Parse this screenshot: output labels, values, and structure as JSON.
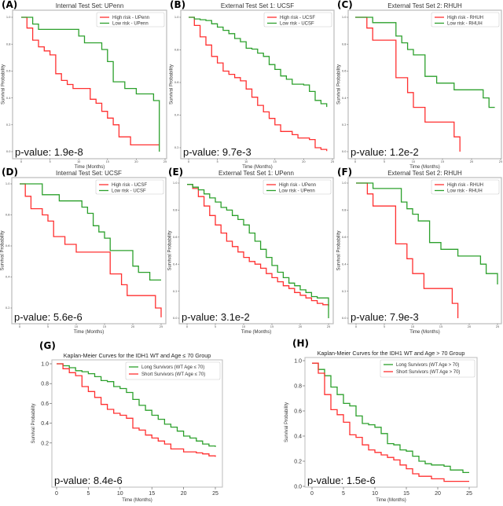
{
  "chart_data": [
    {
      "type": "line",
      "step": true,
      "label": "(A)",
      "title": "Internal Test Set: UPenn",
      "xlabel": "Time (Months)",
      "ylabel": "Survival Probability",
      "pvalue": "p-value: 1.9e-8",
      "xlim": [
        0,
        25
      ],
      "ylim": [
        0,
        1.0
      ],
      "xticks": [
        "0",
        "5",
        "10",
        "15",
        "20",
        "25"
      ],
      "yticks": [
        "0.0",
        "0.2",
        "0.4",
        "0.6",
        "0.8",
        "1.0"
      ],
      "legend": "top-right",
      "grid": false,
      "series": [
        {
          "name": "High risk - UPenn",
          "color": "#ff3030",
          "x": [
            0,
            1,
            2,
            3,
            4,
            5,
            6,
            7,
            8,
            9,
            12,
            13,
            14,
            15,
            16,
            17,
            19,
            24
          ],
          "y": [
            1.0,
            0.92,
            0.83,
            0.78,
            0.75,
            0.72,
            0.58,
            0.53,
            0.5,
            0.47,
            0.39,
            0.36,
            0.3,
            0.25,
            0.2,
            0.11,
            0.05,
            0.05
          ]
        },
        {
          "name": "Low risk - UPenn",
          "color": "#2ca02c",
          "x": [
            0,
            2,
            3,
            10,
            11,
            14,
            15,
            16,
            18,
            20,
            23,
            24
          ],
          "y": [
            1.0,
            0.95,
            0.91,
            0.86,
            0.81,
            0.76,
            0.67,
            0.52,
            0.47,
            0.43,
            0.38,
            0.0
          ]
        }
      ]
    },
    {
      "type": "line",
      "step": true,
      "label": "(B)",
      "title": "External Test Set 1: UCSF",
      "xlabel": "Time (Months)",
      "ylabel": "Survival Probability",
      "pvalue": "p-value: 9.7e-3",
      "xlim": [
        0,
        25
      ],
      "ylim": [
        0.2,
        1.0
      ],
      "xticks": [
        "0",
        "5",
        "10",
        "15",
        "20",
        "25"
      ],
      "yticks": [
        "0.2",
        "0.4",
        "0.6",
        "0.8",
        "1.0"
      ],
      "legend": "top-right",
      "grid": false,
      "series": [
        {
          "name": "High risk - UCSF",
          "color": "#ff3030",
          "x": [
            0,
            1,
            2,
            3,
            4,
            5,
            6,
            7,
            8,
            9,
            10,
            11,
            12,
            13,
            14,
            15,
            16,
            18,
            19,
            21,
            22,
            23,
            24
          ],
          "y": [
            1.0,
            0.95,
            0.88,
            0.83,
            0.76,
            0.72,
            0.67,
            0.65,
            0.63,
            0.61,
            0.56,
            0.51,
            0.46,
            0.42,
            0.38,
            0.34,
            0.3,
            0.28,
            0.26,
            0.25,
            0.2,
            0.19,
            0.18
          ]
        },
        {
          "name": "Low risk - UCSF",
          "color": "#2ca02c",
          "x": [
            0,
            1,
            2,
            3,
            4,
            5,
            6,
            7,
            8,
            9,
            10,
            11,
            12,
            13,
            14,
            15,
            16,
            17,
            18,
            20,
            21,
            22,
            23,
            24
          ],
          "y": [
            1.0,
            0.99,
            0.985,
            0.98,
            0.96,
            0.94,
            0.92,
            0.9,
            0.87,
            0.85,
            0.81,
            0.805,
            0.78,
            0.76,
            0.71,
            0.68,
            0.64,
            0.62,
            0.59,
            0.585,
            0.545,
            0.49,
            0.47,
            0.45
          ]
        }
      ]
    },
    {
      "type": "line",
      "step": true,
      "label": "(C)",
      "title": "External Test Set 2: RHUH",
      "xlabel": "Time (Months)",
      "ylabel": "Survival Probability",
      "pvalue": "p-value: 1.2e-2",
      "xlim": [
        0,
        25
      ],
      "ylim": [
        0,
        1.0
      ],
      "xticks": [
        "0",
        "5",
        "10",
        "15",
        "20",
        "25"
      ],
      "yticks": [
        "0.0",
        "0.2",
        "0.4",
        "0.6",
        "0.8",
        "1.0"
      ],
      "legend": "top-right",
      "grid": false,
      "series": [
        {
          "name": "High risk - RHUH",
          "color": "#ff3030",
          "x": [
            0,
            2,
            3,
            7,
            9,
            10,
            12,
            17,
            18
          ],
          "y": [
            1.0,
            0.92,
            0.83,
            0.55,
            0.44,
            0.33,
            0.22,
            0.11,
            0.0
          ]
        },
        {
          "name": "Low risk - RHUH",
          "color": "#2ca02c",
          "x": [
            0,
            3,
            7,
            8,
            9,
            10,
            12,
            14,
            17,
            22,
            23,
            24
          ],
          "y": [
            1.0,
            0.96,
            0.86,
            0.81,
            0.76,
            0.72,
            0.56,
            0.51,
            0.46,
            0.4,
            0.33,
            0.33
          ]
        }
      ]
    },
    {
      "type": "line",
      "step": true,
      "label": "(D)",
      "title": "Internal Test Set: UCSF",
      "xlabel": "Time (Months)",
      "ylabel": "Survival Probability",
      "pvalue": "p-value: 5.6e-6",
      "xlim": [
        0,
        25
      ],
      "ylim": [
        0.2,
        1.0
      ],
      "xticks": [
        "0",
        "5",
        "10",
        "15",
        "20",
        "25"
      ],
      "yticks": [
        "0.2",
        "0.4",
        "0.6",
        "0.8",
        "1.0"
      ],
      "legend": "top-right",
      "grid": false,
      "series": [
        {
          "name": "High risk - UCSF",
          "color": "#ff3030",
          "x": [
            0,
            1,
            2,
            4,
            5,
            6,
            8,
            10,
            16,
            18,
            19,
            24,
            25
          ],
          "y": [
            1.0,
            0.92,
            0.84,
            0.8,
            0.76,
            0.66,
            0.61,
            0.56,
            0.42,
            0.35,
            0.28,
            0.2,
            0.14
          ]
        },
        {
          "name": "Low risk - UCSF",
          "color": "#2ca02c",
          "x": [
            0,
            4,
            7,
            11,
            12,
            13,
            14,
            15,
            16,
            20,
            21,
            23,
            25
          ],
          "y": [
            1.0,
            0.93,
            0.89,
            0.85,
            0.81,
            0.73,
            0.69,
            0.65,
            0.57,
            0.47,
            0.43,
            0.38,
            0.38
          ]
        }
      ]
    },
    {
      "type": "line",
      "step": true,
      "label": "(E)",
      "title": "External Test Set 1: UPenn",
      "xlabel": "Time (Months)",
      "ylabel": "Survival Probability",
      "pvalue": "p-value: 3.1e-2",
      "xlim": [
        0,
        25
      ],
      "ylim": [
        0,
        1.0
      ],
      "xticks": [
        "0",
        "5",
        "10",
        "15",
        "20",
        "25"
      ],
      "yticks": [
        "0.0",
        "0.2",
        "0.4",
        "0.6",
        "0.8",
        "1.0"
      ],
      "legend": "top-right",
      "grid": false,
      "series": [
        {
          "name": "High risk - UPenn",
          "color": "#ff3030",
          "x": [
            0,
            1,
            2,
            3,
            4,
            5,
            6,
            7,
            8,
            9,
            10,
            11,
            12,
            13,
            14,
            15,
            16,
            17,
            18,
            19,
            20,
            21,
            22,
            23,
            24,
            25
          ],
          "y": [
            0.99,
            0.96,
            0.9,
            0.83,
            0.76,
            0.69,
            0.63,
            0.57,
            0.53,
            0.49,
            0.45,
            0.42,
            0.4,
            0.37,
            0.33,
            0.3,
            0.27,
            0.24,
            0.22,
            0.19,
            0.17,
            0.15,
            0.13,
            0.11,
            0.1,
            0.09
          ]
        },
        {
          "name": "Low risk - UPenn",
          "color": "#2ca02c",
          "x": [
            0,
            1,
            2,
            3,
            4,
            5,
            6,
            7,
            8,
            9,
            10,
            11,
            12,
            13,
            14,
            15,
            16,
            17,
            18,
            19,
            20,
            21,
            22,
            23,
            25,
            25
          ],
          "y": [
            0.99,
            0.97,
            0.95,
            0.92,
            0.89,
            0.86,
            0.82,
            0.8,
            0.76,
            0.73,
            0.69,
            0.63,
            0.57,
            0.51,
            0.45,
            0.39,
            0.34,
            0.3,
            0.26,
            0.24,
            0.21,
            0.19,
            0.16,
            0.15,
            0.15,
            0.0
          ]
        }
      ]
    },
    {
      "type": "line",
      "step": true,
      "label": "(F)",
      "title": "External Test Set 2: RHUH",
      "xlabel": "Time (Months)",
      "ylabel": "Survival Probability",
      "pvalue": "p-value: 7.9e-3",
      "xlim": [
        0,
        25
      ],
      "ylim": [
        0,
        1.0
      ],
      "xticks": [
        "0",
        "5",
        "10",
        "15",
        "20",
        "25"
      ],
      "yticks": [
        "0.0",
        "0.2",
        "0.4",
        "0.6",
        "0.8",
        "1.0"
      ],
      "legend": "top-right",
      "grid": false,
      "series": [
        {
          "name": "High risk - RHUH",
          "color": "#ff3030",
          "x": [
            0,
            2,
            3,
            7,
            9,
            10,
            12,
            17,
            18
          ],
          "y": [
            1.0,
            0.92,
            0.83,
            0.55,
            0.44,
            0.33,
            0.22,
            0.11,
            0.0
          ]
        },
        {
          "name": "Low risk - RHUH",
          "color": "#2ca02c",
          "x": [
            0,
            3,
            8,
            9,
            10,
            11,
            13,
            15,
            18,
            22,
            23,
            25
          ],
          "y": [
            1.0,
            0.96,
            0.86,
            0.81,
            0.77,
            0.72,
            0.56,
            0.51,
            0.46,
            0.4,
            0.33,
            0.25
          ]
        }
      ]
    },
    {
      "type": "line",
      "step": true,
      "label": "(G)",
      "title": "Kaplan-Meier Curves for the IDH1 WT and Age ≤ 70 Group",
      "xlabel": "Time (Months)",
      "ylabel": "Survival Probability",
      "pvalue": "p-value: 8.4e-6",
      "xlim": [
        0,
        25
      ],
      "ylim": [
        0.0,
        1.0
      ],
      "xticks": [
        "0",
        "5",
        "10",
        "15",
        "20",
        "25"
      ],
      "yticks": [
        "0.2",
        "0.4",
        "0.6",
        "0.8",
        "1.0"
      ],
      "legend": "top-right",
      "grid": false,
      "series": [
        {
          "name": "Long Survivors (WT Age ≤ 70)",
          "color": "#2ca02c",
          "x": [
            0,
            1,
            2,
            3,
            4,
            5,
            6,
            7,
            8,
            9,
            10,
            11,
            12,
            13,
            14,
            15,
            16,
            17,
            18,
            19,
            20,
            21,
            22,
            23,
            24,
            25
          ],
          "y": [
            1.0,
            0.98,
            0.96,
            0.93,
            0.92,
            0.9,
            0.87,
            0.83,
            0.82,
            0.77,
            0.75,
            0.71,
            0.64,
            0.58,
            0.53,
            0.48,
            0.44,
            0.39,
            0.36,
            0.32,
            0.27,
            0.25,
            0.22,
            0.19,
            0.17,
            0.16
          ]
        },
        {
          "name": "Short Survivors (WT Age ≤ 70)",
          "color": "#ff3030",
          "x": [
            0,
            1,
            2,
            3,
            4,
            5,
            6,
            7,
            8,
            9,
            10,
            11,
            12,
            13,
            14,
            15,
            16,
            17,
            18,
            20,
            22,
            23,
            24,
            25
          ],
          "y": [
            1.0,
            0.95,
            0.91,
            0.88,
            0.77,
            0.72,
            0.66,
            0.59,
            0.54,
            0.5,
            0.48,
            0.45,
            0.35,
            0.33,
            0.28,
            0.25,
            0.22,
            0.19,
            0.14,
            0.11,
            0.1,
            0.09,
            0.07,
            0.06
          ]
        }
      ]
    },
    {
      "type": "line",
      "step": true,
      "label": "(H)",
      "title": "Kaplan-Meier Curves for the IDH1 WT and Age > 70 Group",
      "xlabel": "Time (Months)",
      "ylabel": "Survival Probability",
      "pvalue": "p-value: 1.5e-6",
      "xlim": [
        0,
        25
      ],
      "ylim": [
        0.0,
        1.0
      ],
      "xticks": [
        "0",
        "5",
        "10",
        "15",
        "20",
        "25"
      ],
      "yticks": [
        "0.0",
        "0.2",
        "0.4",
        "0.6",
        "0.8",
        "1.0"
      ],
      "legend": "top-right",
      "grid": false,
      "series": [
        {
          "name": "Long Survivors (WT Age > 70)",
          "color": "#2ca02c",
          "x": [
            0,
            1,
            2,
            3,
            4,
            5,
            6,
            7,
            8,
            9,
            10,
            11,
            12,
            13,
            14,
            15,
            16,
            17,
            18,
            19,
            21,
            22,
            24,
            25
          ],
          "y": [
            0.98,
            0.93,
            0.88,
            0.79,
            0.73,
            0.66,
            0.64,
            0.56,
            0.5,
            0.49,
            0.47,
            0.42,
            0.34,
            0.33,
            0.29,
            0.28,
            0.24,
            0.2,
            0.18,
            0.17,
            0.16,
            0.13,
            0.11,
            0.11
          ]
        },
        {
          "name": "Short Survivors (WT Age > 70)",
          "color": "#ff3030",
          "x": [
            0,
            1,
            2,
            3,
            4,
            5,
            6,
            7,
            8,
            9,
            10,
            11,
            12,
            13,
            14,
            15,
            16,
            17,
            19,
            21,
            25
          ],
          "y": [
            0.98,
            0.9,
            0.73,
            0.61,
            0.57,
            0.51,
            0.41,
            0.39,
            0.33,
            0.29,
            0.27,
            0.25,
            0.23,
            0.21,
            0.17,
            0.14,
            0.1,
            0.08,
            0.06,
            0.04,
            0.04
          ]
        }
      ]
    }
  ]
}
